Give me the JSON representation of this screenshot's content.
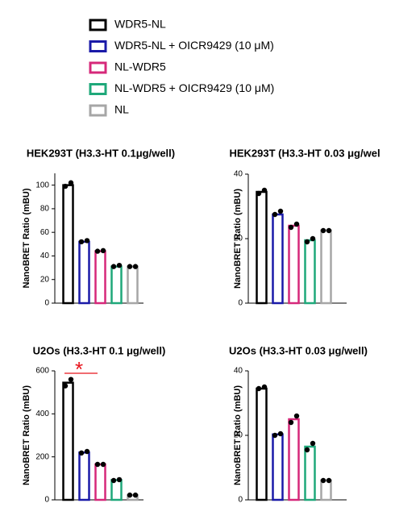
{
  "legend": {
    "series": [
      {
        "name": "WDR5-NL",
        "color": "#000000"
      },
      {
        "name": "WDR5-NL + OICR9429 (10 μM)",
        "color": "#1a1aa8"
      },
      {
        "name": "NL-WDR5",
        "color": "#d6287a"
      },
      {
        "name": "NL-WDR5 + OICR9429 (10 μM)",
        "color": "#1fa87a"
      },
      {
        "name": "NL",
        "color": "#a6a6a6"
      }
    ]
  },
  "chart_data": [
    {
      "type": "bar",
      "title": "HEK293T (H3.3-HT 0.1μg/well)",
      "ylabel": "NanoBRET Ratio (mBU)",
      "values": [
        100,
        52,
        44,
        31,
        31
      ],
      "points": [
        [
          99,
          102
        ],
        [
          52,
          53
        ],
        [
          44,
          44.5
        ],
        [
          31,
          32
        ],
        [
          31,
          31
        ]
      ],
      "ylim": [
        0,
        110
      ],
      "yticks": [
        0,
        20,
        40,
        60,
        80,
        100
      ]
    },
    {
      "type": "bar",
      "title": "HEK293T (H3.3-HT 0.03 μg/wel",
      "ylabel": "NanoBRET Ratio (mBU)",
      "values": [
        34.5,
        27.5,
        24,
        19.5,
        22.5
      ],
      "points": [
        [
          34,
          35
        ],
        [
          27.5,
          28.5
        ],
        [
          23.5,
          24.5
        ],
        [
          19,
          20
        ],
        [
          22.5,
          22.5
        ]
      ],
      "ylim": [
        0,
        40
      ],
      "yticks": [
        0,
        20,
        40
      ]
    },
    {
      "type": "bar",
      "title": "U2Os (H3.3-HT 0.1 μg/well)",
      "ylabel": "NanoBRET Ratio (mBU)",
      "values": [
        545,
        220,
        165,
        92,
        22
      ],
      "points": [
        [
          530,
          560
        ],
        [
          218,
          225
        ],
        [
          165,
          165
        ],
        [
          90,
          94
        ],
        [
          22,
          22
        ]
      ],
      "ylim": [
        0,
        600
      ],
      "yticks": [
        0,
        200,
        400,
        600
      ],
      "annotation": "*"
    },
    {
      "type": "bar",
      "title": "U2Os (H3.3-HT 0.03 μg/well)",
      "ylabel": "NanoBRET Ratio (mBU)",
      "values": [
        34.5,
        20.3,
        25,
        16.5,
        6
      ],
      "points": [
        [
          34.5,
          35
        ],
        [
          20,
          20.5
        ],
        [
          24,
          26
        ],
        [
          15.5,
          17.5
        ],
        [
          6,
          6
        ]
      ],
      "ylim": [
        0,
        40
      ],
      "yticks": [
        0,
        20,
        40
      ]
    }
  ]
}
